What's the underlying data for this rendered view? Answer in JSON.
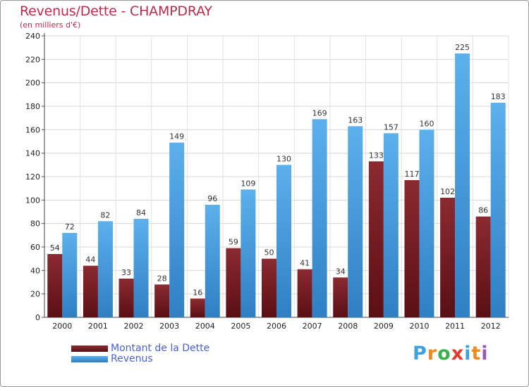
{
  "chart_data": {
    "type": "bar",
    "title": "Revenus/Dette - CHAMPDRAY",
    "subtitle": "(en milliers d'€)",
    "xlabel": "",
    "ylabel": "",
    "categories": [
      "2000",
      "2001",
      "2002",
      "2003",
      "2004",
      "2005",
      "2006",
      "2007",
      "2008",
      "2009",
      "2010",
      "2011",
      "2012"
    ],
    "series": [
      {
        "name": "Montant de la Dette",
        "color": "#7a1b21",
        "values": [
          54,
          44,
          33,
          28,
          16,
          59,
          50,
          41,
          34,
          133,
          117,
          102,
          86
        ]
      },
      {
        "name": "Revenus",
        "color": "#4ea3e3",
        "values": [
          72,
          82,
          84,
          149,
          96,
          109,
          130,
          169,
          163,
          157,
          160,
          225,
          183
        ]
      }
    ],
    "ylim": [
      0,
      240
    ],
    "yticks": [
      0,
      20,
      40,
      60,
      80,
      100,
      120,
      140,
      160,
      180,
      200,
      220,
      240
    ],
    "grid": true,
    "legend": "bottom-left"
  },
  "brand": {
    "letters": [
      "P",
      "r",
      "o",
      "x",
      "i",
      "t",
      "i"
    ],
    "colors": [
      "#3aa3e0",
      "#f08a1e",
      "#3ab14a",
      "#e8372c",
      "#3aa3e0",
      "#f08a1e",
      "#9b59b6"
    ]
  }
}
